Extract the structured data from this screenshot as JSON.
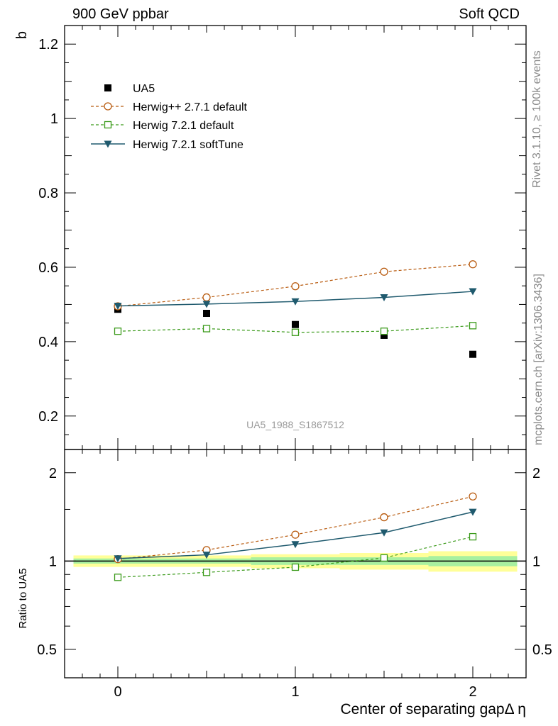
{
  "header": {
    "left": "900 GeV ppbar",
    "right": "Soft QCD"
  },
  "side_text": {
    "rivet": "Rivet 3.1.10, ≥ 100k events",
    "mcplots": "mcplots.cern.ch [arXiv:1306.3436]"
  },
  "analysis_label": "UA5_1988_S1867512",
  "colors": {
    "data": "#000000",
    "herwigpp": "#b85a0e",
    "herwig721": "#3a9a1a",
    "softtune": "#1f5a6e",
    "band_inner": "#a8f0a0",
    "band_outer": "#ffff99"
  },
  "chart_data": [
    {
      "type": "scatter",
      "panel": "main",
      "ylabel": "b",
      "xlim": [
        -0.3,
        2.3
      ],
      "ylim": [
        0.11,
        1.25
      ],
      "yticks": [
        0.2,
        0.4,
        0.6,
        0.8,
        1,
        1.2
      ],
      "ytick_labels": [
        "0.2",
        "0.4",
        "0.6",
        "0.8",
        "1",
        "1.2"
      ],
      "legend_position": "top-left",
      "series": [
        {
          "name": "UA5",
          "style": "data",
          "x": [
            0,
            0.5,
            1,
            1.5,
            2
          ],
          "y": [
            0.487,
            0.476,
            0.446,
            0.417,
            0.366
          ]
        },
        {
          "name": "Herwig++ 2.7.1 default",
          "style": "herwigpp",
          "x": [
            0,
            0.5,
            1,
            1.5,
            2
          ],
          "y": [
            0.495,
            0.519,
            0.549,
            0.588,
            0.608
          ]
        },
        {
          "name": "Herwig 7.2.1 default",
          "style": "herwig721",
          "x": [
            0,
            0.5,
            1,
            1.5,
            2
          ],
          "y": [
            0.428,
            0.435,
            0.425,
            0.428,
            0.443
          ]
        },
        {
          "name": "Herwig 7.2.1 softTune",
          "style": "softtune",
          "x": [
            0,
            0.5,
            1,
            1.5,
            2
          ],
          "y": [
            0.496,
            0.501,
            0.508,
            0.519,
            0.535
          ]
        }
      ]
    },
    {
      "type": "line",
      "panel": "ratio",
      "ylabel": "Ratio to UA5",
      "xlabel": "Center of separating gapΔ η",
      "xlim": [
        -0.3,
        2.3
      ],
      "ylim": [
        0.4,
        2.4
      ],
      "yscale": "log",
      "yticks": [
        0.5,
        1,
        2
      ],
      "ytick_labels": [
        "0.5",
        "1",
        "2"
      ],
      "xticks": [
        0,
        1,
        2
      ],
      "xtick_labels": [
        "0",
        "1",
        "2"
      ],
      "reference": 1,
      "bands": {
        "x_edges": [
          -0.25,
          0.25,
          0.75,
          1.25,
          1.75,
          2.25
        ],
        "inner": [
          [
            0.98,
            1.02
          ],
          [
            0.98,
            1.02
          ],
          [
            0.97,
            1.03
          ],
          [
            0.97,
            1.03
          ],
          [
            0.96,
            1.04
          ]
        ],
        "outer": [
          [
            0.955,
            1.045
          ],
          [
            0.955,
            1.045
          ],
          [
            0.945,
            1.055
          ],
          [
            0.935,
            1.065
          ],
          [
            0.92,
            1.08
          ]
        ]
      },
      "series": [
        {
          "name": "Herwig++ 2.7.1 default",
          "style": "herwigpp",
          "x": [
            0,
            0.5,
            1,
            1.5,
            2
          ],
          "y": [
            1.015,
            1.09,
            1.23,
            1.41,
            1.66
          ]
        },
        {
          "name": "Herwig 7.2.1 default",
          "style": "herwig721",
          "x": [
            0,
            0.5,
            1,
            1.5,
            2
          ],
          "y": [
            0.88,
            0.915,
            0.953,
            1.025,
            1.21
          ]
        },
        {
          "name": "Herwig 7.2.1 softTune",
          "style": "softtune",
          "x": [
            0,
            0.5,
            1,
            1.5,
            2
          ],
          "y": [
            1.02,
            1.05,
            1.14,
            1.25,
            1.47
          ]
        }
      ]
    }
  ]
}
